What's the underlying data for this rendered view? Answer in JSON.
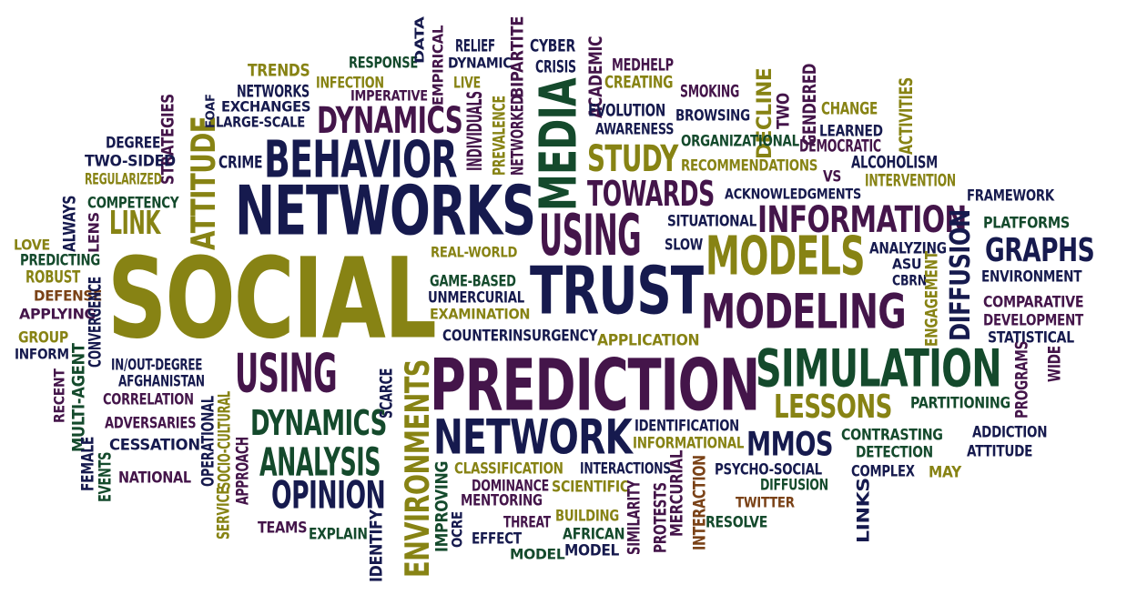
{
  "palette": {
    "navy": "#161a4e",
    "olive": "#878314",
    "green": "#144a2c",
    "purple": "#44154a",
    "brown": "#7a4217"
  },
  "words": [
    {
      "text": "SOCIAL",
      "color": "olive",
      "vertical": false
    },
    {
      "text": "NETWORKS",
      "color": "navy",
      "vertical": false
    },
    {
      "text": "PREDICTION",
      "color": "purple",
      "vertical": false
    },
    {
      "text": "TRUST",
      "color": "navy",
      "vertical": false
    },
    {
      "text": "BEHAVIOR",
      "color": "navy",
      "vertical": false
    },
    {
      "text": "SIMULATION",
      "color": "green",
      "vertical": false
    },
    {
      "text": "NETWORK",
      "color": "navy",
      "vertical": false
    },
    {
      "text": "MODELING",
      "color": "purple",
      "vertical": false
    },
    {
      "text": "MODELS",
      "color": "olive",
      "vertical": false
    },
    {
      "text": "USING",
      "color": "purple",
      "vertical": false
    },
    {
      "text": "USING",
      "color": "purple",
      "vertical": false
    },
    {
      "text": "INFORMATION",
      "color": "purple",
      "vertical": false
    },
    {
      "text": "MEDIA",
      "color": "green",
      "vertical": true
    },
    {
      "text": "ATTITUDE",
      "color": "olive",
      "vertical": true
    },
    {
      "text": "DYNAMICS",
      "color": "purple",
      "vertical": false
    },
    {
      "text": "DYNAMICS",
      "color": "green",
      "vertical": false
    },
    {
      "text": "TOWARDS",
      "color": "purple",
      "vertical": false
    },
    {
      "text": "STUDY",
      "color": "olive",
      "vertical": false
    },
    {
      "text": "ANALYSIS",
      "color": "green",
      "vertical": false
    },
    {
      "text": "OPINION",
      "color": "navy",
      "vertical": false
    },
    {
      "text": "LESSONS",
      "color": "olive",
      "vertical": false
    },
    {
      "text": "GRAPHS",
      "color": "navy",
      "vertical": false
    },
    {
      "text": "DIFFUSION",
      "color": "navy",
      "vertical": true
    },
    {
      "text": "ENVIRONMENTS",
      "color": "olive",
      "vertical": true
    },
    {
      "text": "MMOS",
      "color": "navy",
      "vertical": false
    },
    {
      "text": "LINK",
      "color": "olive",
      "vertical": false
    },
    {
      "text": "FOAF",
      "color": "navy",
      "vertical": true
    },
    {
      "text": "STRATEGIES",
      "color": "purple",
      "vertical": true
    },
    {
      "text": "TRENDS",
      "color": "olive",
      "vertical": false
    },
    {
      "text": "NETWORKS",
      "color": "navy",
      "vertical": false
    },
    {
      "text": "EXCHANGES",
      "color": "navy",
      "vertical": false
    },
    {
      "text": "LARGE-SCALE",
      "color": "navy",
      "vertical": false
    },
    {
      "text": "INFECTION",
      "color": "olive",
      "vertical": false
    },
    {
      "text": "IMPERATIVE",
      "color": "purple",
      "vertical": false
    },
    {
      "text": "RESPONSE",
      "color": "green",
      "vertical": false
    },
    {
      "text": "DATA",
      "color": "navy",
      "vertical": true
    },
    {
      "text": "EMPIRICAL",
      "color": "purple",
      "vertical": true
    },
    {
      "text": "RELIEF",
      "color": "navy",
      "vertical": false
    },
    {
      "text": "DYNAMIC",
      "color": "navy",
      "vertical": false
    },
    {
      "text": "LIVE",
      "color": "olive",
      "vertical": false
    },
    {
      "text": "INDIVIDUALS",
      "color": "purple",
      "vertical": true
    },
    {
      "text": "PREVALENCE",
      "color": "olive",
      "vertical": true
    },
    {
      "text": "NETWORKED",
      "color": "purple",
      "vertical": true
    },
    {
      "text": "BIPARTITE",
      "color": "purple",
      "vertical": true
    },
    {
      "text": "CYBER",
      "color": "navy",
      "vertical": false
    },
    {
      "text": "CRISIS",
      "color": "navy",
      "vertical": false
    },
    {
      "text": "ACADEMIC",
      "color": "purple",
      "vertical": true
    },
    {
      "text": "MEDHELP",
      "color": "purple",
      "vertical": false
    },
    {
      "text": "CREATING",
      "color": "olive",
      "vertical": false
    },
    {
      "text": "EVOLUTION",
      "color": "navy",
      "vertical": false
    },
    {
      "text": "AWARENESS",
      "color": "navy",
      "vertical": false
    },
    {
      "text": "SMOKING",
      "color": "purple",
      "vertical": false
    },
    {
      "text": "BROWSING",
      "color": "navy",
      "vertical": false
    },
    {
      "text": "DECLINE",
      "color": "olive",
      "vertical": true
    },
    {
      "text": "TWO",
      "color": "purple",
      "vertical": true
    },
    {
      "text": "GENDERED",
      "color": "purple",
      "vertical": true
    },
    {
      "text": "CHANGE",
      "color": "olive",
      "vertical": false
    },
    {
      "text": "ACTIVITIES",
      "color": "olive",
      "vertical": true
    },
    {
      "text": "LEARNED",
      "color": "navy",
      "vertical": false
    },
    {
      "text": "DEMOCRATIC",
      "color": "purple",
      "vertical": false
    },
    {
      "text": "ORGANIZATIONAL",
      "color": "green",
      "vertical": false
    },
    {
      "text": "RECOMMENDATIONS",
      "color": "olive",
      "vertical": false
    },
    {
      "text": "VS",
      "color": "purple",
      "vertical": false
    },
    {
      "text": "ALCOHOLISM",
      "color": "navy",
      "vertical": false
    },
    {
      "text": "INTERVENTION",
      "color": "olive",
      "vertical": false
    },
    {
      "text": "ACKNOWLEDGMENTS",
      "color": "navy",
      "vertical": false
    },
    {
      "text": "FRAMEWORK",
      "color": "navy",
      "vertical": false
    },
    {
      "text": "DEGREE",
      "color": "navy",
      "vertical": false
    },
    {
      "text": "TWO-SIDED",
      "color": "navy",
      "vertical": false
    },
    {
      "text": "CRIME",
      "color": "navy",
      "vertical": false
    },
    {
      "text": "REGULARIZED",
      "color": "olive",
      "vertical": false
    },
    {
      "text": "COMPETENCY",
      "color": "green",
      "vertical": false
    },
    {
      "text": "ALWAYS",
      "color": "navy",
      "vertical": true
    },
    {
      "text": "LENS",
      "color": "purple",
      "vertical": true
    },
    {
      "text": "LOVE",
      "color": "olive",
      "vertical": false
    },
    {
      "text": "PREDICTING",
      "color": "green",
      "vertical": false
    },
    {
      "text": "ROBUST",
      "color": "olive",
      "vertical": false
    },
    {
      "text": "DEFENSE",
      "color": "brown",
      "vertical": false
    },
    {
      "text": "APPLYING",
      "color": "purple",
      "vertical": false
    },
    {
      "text": "CONVERGENCE",
      "color": "navy",
      "vertical": true
    },
    {
      "text": "GROUP",
      "color": "olive",
      "vertical": false
    },
    {
      "text": "INFORM",
      "color": "navy",
      "vertical": false
    },
    {
      "text": "MULTI-AGENT",
      "color": "green",
      "vertical": true
    },
    {
      "text": "RECENT",
      "color": "purple",
      "vertical": true
    },
    {
      "text": "IN/OUT-DEGREE",
      "color": "navy",
      "vertical": false
    },
    {
      "text": "AFGHANISTAN",
      "color": "navy",
      "vertical": false
    },
    {
      "text": "CORRELATION",
      "color": "purple",
      "vertical": false
    },
    {
      "text": "ADVERSARIES",
      "color": "purple",
      "vertical": false
    },
    {
      "text": "CESSATION",
      "color": "navy",
      "vertical": false
    },
    {
      "text": "FEMALE",
      "color": "navy",
      "vertical": true
    },
    {
      "text": "EVENTS",
      "color": "green",
      "vertical": true
    },
    {
      "text": "NATIONAL",
      "color": "purple",
      "vertical": false
    },
    {
      "text": "OPERATIONAL",
      "color": "navy",
      "vertical": true
    },
    {
      "text": "SERVICE",
      "color": "olive",
      "vertical": true
    },
    {
      "text": "SOCIO-CULTURAL",
      "color": "olive",
      "vertical": true
    },
    {
      "text": "APPROACH",
      "color": "purple",
      "vertical": true
    },
    {
      "text": "TEAMS",
      "color": "purple",
      "vertical": false
    },
    {
      "text": "EXPLAIN",
      "color": "green",
      "vertical": false
    },
    {
      "text": "IDENTIFY",
      "color": "navy",
      "vertical": true
    },
    {
      "text": "SCARCE",
      "color": "navy",
      "vertical": true
    },
    {
      "text": "REAL-WORLD",
      "color": "olive",
      "vertical": false
    },
    {
      "text": "GAME-BASED",
      "color": "green",
      "vertical": false
    },
    {
      "text": "UNMERCURIAL",
      "color": "navy",
      "vertical": false
    },
    {
      "text": "EXAMINATION",
      "color": "olive",
      "vertical": false
    },
    {
      "text": "COUNTERINSURGENCY",
      "color": "navy",
      "vertical": false
    },
    {
      "text": "APPLICATION",
      "color": "olive",
      "vertical": false
    },
    {
      "text": "SITUATIONAL",
      "color": "navy",
      "vertical": false
    },
    {
      "text": "SLOW",
      "color": "navy",
      "vertical": false
    },
    {
      "text": "ANALYZING",
      "color": "navy",
      "vertical": false
    },
    {
      "text": "ASU",
      "color": "navy",
      "vertical": false
    },
    {
      "text": "CBRN",
      "color": "navy",
      "vertical": false
    },
    {
      "text": "PLATFORMS",
      "color": "green",
      "vertical": false
    },
    {
      "text": "ENVIRONMENT",
      "color": "navy",
      "vertical": false
    },
    {
      "text": "ENGAGEMENT",
      "color": "olive",
      "vertical": true
    },
    {
      "text": "COMPARATIVE",
      "color": "purple",
      "vertical": false
    },
    {
      "text": "DEVELOPMENT",
      "color": "purple",
      "vertical": false
    },
    {
      "text": "STATISTICAL",
      "color": "navy",
      "vertical": false
    },
    {
      "text": "PROGRAMS",
      "color": "purple",
      "vertical": true
    },
    {
      "text": "WIDE",
      "color": "purple",
      "vertical": true
    },
    {
      "text": "PARTITIONING",
      "color": "green",
      "vertical": false
    },
    {
      "text": "IDENTIFICATION",
      "color": "navy",
      "vertical": false
    },
    {
      "text": "INFORMATIONAL",
      "color": "olive",
      "vertical": false
    },
    {
      "text": "CONTRASTING",
      "color": "green",
      "vertical": false
    },
    {
      "text": "DETECTION",
      "color": "green",
      "vertical": false
    },
    {
      "text": "ADDICTION",
      "color": "navy",
      "vertical": false
    },
    {
      "text": "ATTITUDE",
      "color": "navy",
      "vertical": false
    },
    {
      "text": "CLASSIFICATION",
      "color": "olive",
      "vertical": false
    },
    {
      "text": "DOMINANCE",
      "color": "purple",
      "vertical": false
    },
    {
      "text": "INTERACTIONS",
      "color": "navy",
      "vertical": false
    },
    {
      "text": "SCIENTIFIC",
      "color": "olive",
      "vertical": false
    },
    {
      "text": "MERCURIAL",
      "color": "purple",
      "vertical": true
    },
    {
      "text": "PSYCHO-SOCIAL",
      "color": "navy",
      "vertical": false
    },
    {
      "text": "DIFFUSION",
      "color": "green",
      "vertical": false
    },
    {
      "text": "COMPLEX",
      "color": "navy",
      "vertical": false
    },
    {
      "text": "MAY",
      "color": "olive",
      "vertical": false
    },
    {
      "text": "LINKS",
      "color": "navy",
      "vertical": true
    },
    {
      "text": "IMPROVING",
      "color": "green",
      "vertical": true
    },
    {
      "text": "OCRE",
      "color": "navy",
      "vertical": true
    },
    {
      "text": "MENTORING",
      "color": "purple",
      "vertical": false
    },
    {
      "text": "BUILDING",
      "color": "olive",
      "vertical": false
    },
    {
      "text": "THREAT",
      "color": "purple",
      "vertical": false
    },
    {
      "text": "AFRICAN",
      "color": "green",
      "vertical": false
    },
    {
      "text": "EFFECT",
      "color": "navy",
      "vertical": false
    },
    {
      "text": "MODEL",
      "color": "green",
      "vertical": false
    },
    {
      "text": "MODEL",
      "color": "navy",
      "vertical": false
    },
    {
      "text": "SIMILARITY",
      "color": "purple",
      "vertical": true
    },
    {
      "text": "PROTESTS",
      "color": "purple",
      "vertical": true
    },
    {
      "text": "INTERACTION",
      "color": "brown",
      "vertical": true
    },
    {
      "text": "TWITTER",
      "color": "brown",
      "vertical": false
    },
    {
      "text": "RESOLVE",
      "color": "green",
      "vertical": false
    }
  ]
}
